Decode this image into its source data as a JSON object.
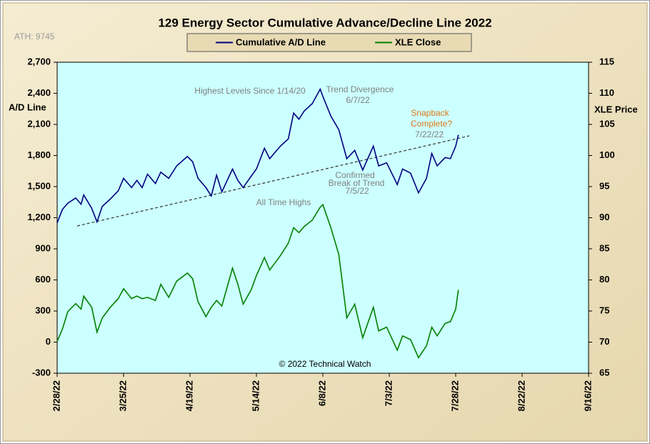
{
  "chart_data": {
    "type": "line",
    "title": "129 Energy Sector Cumulative Advance/Decline Line 2022",
    "ylabel": "A/D Line",
    "y2label": "XLE Price",
    "annotations": [
      "ATH: 9745",
      "Highest Levels Since 1/14/20",
      "Trend  Divergence",
      "6/7/22",
      "Snapback",
      "Complete?",
      "7/22/22",
      "Confirmed",
      "Break of Trend",
      "7/5/22",
      "All Time Highs",
      "© 2022 Technical Watch"
    ],
    "x": [
      "2022-02-28",
      "2022-03-02",
      "2022-03-04",
      "2022-03-07",
      "2022-03-09",
      "2022-03-10",
      "2022-03-13",
      "2022-03-15",
      "2022-03-17",
      "2022-03-20",
      "2022-03-23",
      "2022-03-25",
      "2022-03-28",
      "2022-03-30",
      "2022-04-01",
      "2022-04-03",
      "2022-04-06",
      "2022-04-08",
      "2022-04-11",
      "2022-04-14",
      "2022-04-18",
      "2022-04-20",
      "2022-04-22",
      "2022-04-25",
      "2022-04-27",
      "2022-04-29",
      "2022-05-01",
      "2022-05-05",
      "2022-05-07",
      "2022-05-09",
      "2022-05-12",
      "2022-05-14",
      "2022-05-17",
      "2022-05-19",
      "2022-05-23",
      "2022-05-26",
      "2022-05-28",
      "2022-05-30",
      "2022-06-01",
      "2022-06-04",
      "2022-06-07",
      "2022-06-08",
      "2022-06-11",
      "2022-06-14",
      "2022-06-17",
      "2022-06-20",
      "2022-06-23",
      "2022-06-27",
      "2022-06-29",
      "2022-07-02",
      "2022-07-06",
      "2022-07-08",
      "2022-07-11",
      "2022-07-14",
      "2022-07-17",
      "2022-07-19",
      "2022-07-21",
      "2022-07-24",
      "2022-07-26",
      "2022-07-28",
      "2022-07-29"
    ],
    "series": [
      {
        "name": "Cumulative A/D Line",
        "color": "#000080",
        "axis": "y",
        "values": [
          1150,
          1280,
          1340,
          1390,
          1330,
          1420,
          1290,
          1160,
          1310,
          1380,
          1460,
          1580,
          1490,
          1560,
          1490,
          1620,
          1530,
          1640,
          1580,
          1700,
          1790,
          1740,
          1580,
          1490,
          1410,
          1610,
          1450,
          1670,
          1560,
          1490,
          1600,
          1670,
          1870,
          1770,
          1890,
          1960,
          2210,
          2150,
          2230,
          2300,
          2440,
          2370,
          2180,
          2050,
          1770,
          1850,
          1660,
          1890,
          1700,
          1730,
          1520,
          1670,
          1630,
          1440,
          1580,
          1820,
          1700,
          1780,
          1770,
          1890,
          2000
        ]
      },
      {
        "name": "XLE Close",
        "color": "#008000",
        "axis": "y2",
        "values": [
          70.1,
          72.1,
          74.9,
          76.2,
          75.3,
          77.4,
          75.6,
          71.6,
          73.9,
          75.6,
          77.0,
          78.6,
          77.0,
          77.4,
          77.0,
          77.2,
          76.7,
          79.3,
          77.2,
          79.8,
          81.1,
          80.2,
          76.5,
          74.1,
          75.6,
          76.7,
          75.8,
          81.9,
          79.3,
          76.1,
          78.4,
          80.7,
          83.6,
          81.6,
          83.9,
          85.9,
          88.4,
          87.6,
          88.6,
          89.6,
          91.7,
          92.1,
          88.4,
          84.1,
          73.9,
          76.1,
          70.7,
          75.6,
          71.8,
          72.4,
          68.7,
          71.0,
          70.4,
          67.5,
          69.4,
          72.4,
          71.0,
          73.0,
          73.3,
          75.3,
          78.4
        ]
      }
    ],
    "xlim": [
      "2022-02-28",
      "2022-09-16"
    ],
    "xticks": [
      {
        "value": "2022-02-28",
        "label": "2/28/22"
      },
      {
        "value": "2022-03-25",
        "label": "3/25/22"
      },
      {
        "value": "2022-04-19",
        "label": "4/19/22"
      },
      {
        "value": "2022-05-14",
        "label": "5/14/22"
      },
      {
        "value": "2022-06-08",
        "label": "6/8/22"
      },
      {
        "value": "2022-07-03",
        "label": "7/3/22"
      },
      {
        "value": "2022-07-28",
        "label": "7/28/22"
      },
      {
        "value": "2022-08-22",
        "label": "8/22/22"
      },
      {
        "value": "2022-09-16",
        "label": "9/16/22"
      }
    ],
    "ylim": [
      -300,
      2700
    ],
    "yticks": [
      -300,
      0,
      300,
      600,
      900,
      {
        "value": 1200,
        "label": "1,200"
      },
      {
        "value": 1500,
        "label": "1,500"
      },
      {
        "value": 1800,
        "label": "1,800"
      },
      {
        "value": 2100,
        "label": "2,100"
      },
      {
        "value": 2400,
        "label": "2,400"
      },
      {
        "value": 2700,
        "label": "2,700"
      }
    ],
    "y2lim": [
      65,
      115
    ],
    "y2ticks": [
      65,
      70,
      75,
      80,
      85,
      90,
      95,
      100,
      105,
      110,
      115
    ],
    "grid": false,
    "legend": "top"
  }
}
